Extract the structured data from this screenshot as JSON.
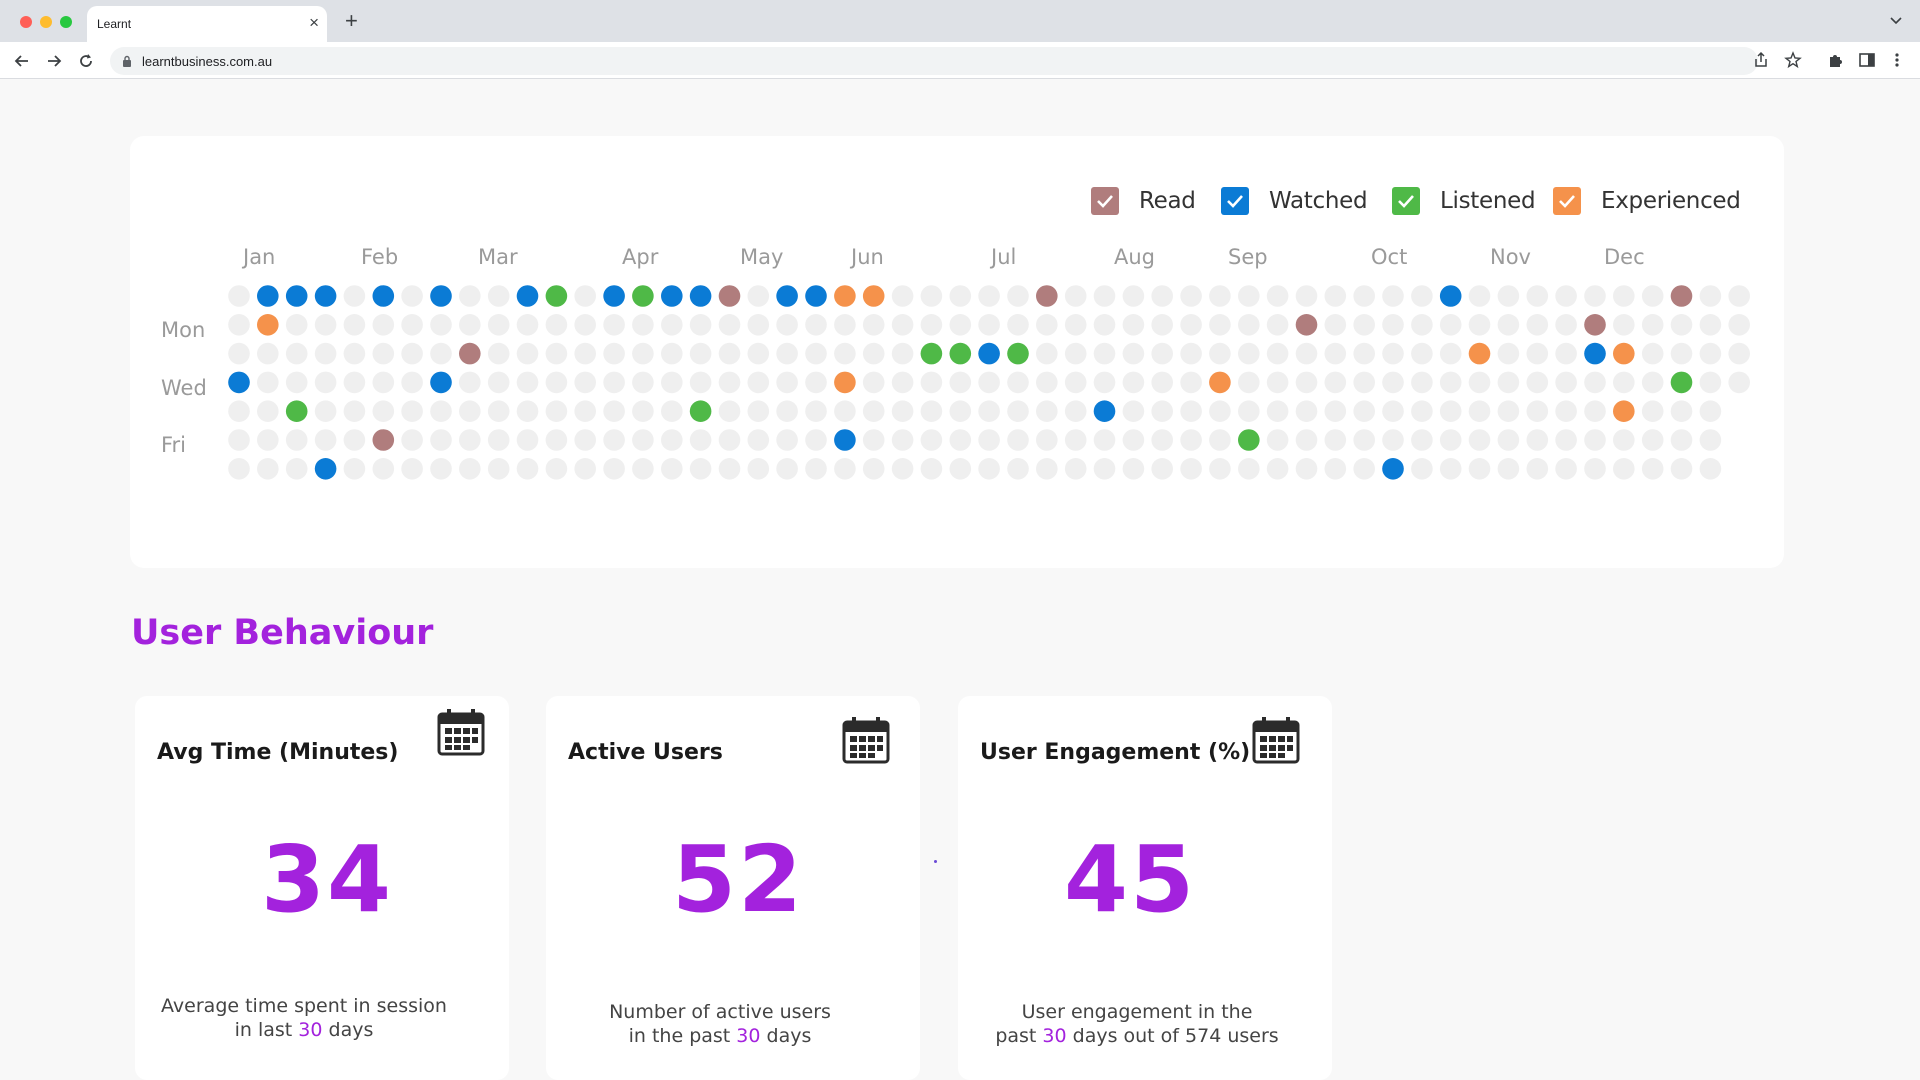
{
  "browser": {
    "tab_title": "Learnt",
    "tab_close": "×",
    "new_tab": "+",
    "url": "learntbusiness.com.au"
  },
  "legend": [
    {
      "label": "Read",
      "color": "#b07d7d"
    },
    {
      "label": "Watched",
      "color": "#0b7bd5"
    },
    {
      "label": "Listened",
      "color": "#4fb947"
    },
    {
      "label": "Experienced",
      "color": "#f5924b"
    }
  ],
  "heatmap": {
    "months": [
      "Jan",
      "Feb",
      "Mar",
      "Apr",
      "May",
      "Jun",
      "Jul",
      "Aug",
      "Sep",
      "Oct",
      "Nov",
      "Dec"
    ],
    "day_labels": [
      "Mon",
      "Wed",
      "Fri"
    ],
    "empty_color": "#efefef",
    "activity": [
      {
        "week": 1,
        "row": 0,
        "type": "Watched"
      },
      {
        "week": 2,
        "row": 0,
        "type": "Watched"
      },
      {
        "week": 3,
        "row": 0,
        "type": "Watched"
      },
      {
        "week": 5,
        "row": 0,
        "type": "Watched"
      },
      {
        "week": 7,
        "row": 0,
        "type": "Watched"
      },
      {
        "week": 10,
        "row": 0,
        "type": "Watched"
      },
      {
        "week": 11,
        "row": 0,
        "type": "Listened"
      },
      {
        "week": 13,
        "row": 0,
        "type": "Watched"
      },
      {
        "week": 14,
        "row": 0,
        "type": "Listened"
      },
      {
        "week": 15,
        "row": 0,
        "type": "Watched"
      },
      {
        "week": 16,
        "row": 0,
        "type": "Watched"
      },
      {
        "week": 17,
        "row": 0,
        "type": "Read"
      },
      {
        "week": 19,
        "row": 0,
        "type": "Watched"
      },
      {
        "week": 20,
        "row": 0,
        "type": "Watched"
      },
      {
        "week": 21,
        "row": 0,
        "type": "Experienced"
      },
      {
        "week": 22,
        "row": 0,
        "type": "Experienced"
      },
      {
        "week": 28,
        "row": 0,
        "type": "Read"
      },
      {
        "week": 42,
        "row": 0,
        "type": "Watched"
      },
      {
        "week": 50,
        "row": 0,
        "type": "Read"
      },
      {
        "week": 1,
        "row": 1,
        "type": "Experienced"
      },
      {
        "week": 37,
        "row": 1,
        "type": "Read"
      },
      {
        "week": 47,
        "row": 1,
        "type": "Read"
      },
      {
        "week": 8,
        "row": 2,
        "type": "Read"
      },
      {
        "week": 24,
        "row": 2,
        "type": "Listened"
      },
      {
        "week": 25,
        "row": 2,
        "type": "Listened"
      },
      {
        "week": 26,
        "row": 2,
        "type": "Watched"
      },
      {
        "week": 27,
        "row": 2,
        "type": "Listened"
      },
      {
        "week": 43,
        "row": 2,
        "type": "Experienced"
      },
      {
        "week": 47,
        "row": 2,
        "type": "Watched"
      },
      {
        "week": 48,
        "row": 2,
        "type": "Experienced"
      },
      {
        "week": 0,
        "row": 3,
        "type": "Watched"
      },
      {
        "week": 7,
        "row": 3,
        "type": "Watched"
      },
      {
        "week": 21,
        "row": 3,
        "type": "Experienced"
      },
      {
        "week": 34,
        "row": 3,
        "type": "Experienced"
      },
      {
        "week": 50,
        "row": 3,
        "type": "Listened"
      },
      {
        "week": 2,
        "row": 4,
        "type": "Listened"
      },
      {
        "week": 16,
        "row": 4,
        "type": "Listened"
      },
      {
        "week": 30,
        "row": 4,
        "type": "Watched"
      },
      {
        "week": 48,
        "row": 4,
        "type": "Experienced"
      },
      {
        "week": 5,
        "row": 5,
        "type": "Read"
      },
      {
        "week": 21,
        "row": 5,
        "type": "Watched"
      },
      {
        "week": 35,
        "row": 5,
        "type": "Listened"
      },
      {
        "week": 3,
        "row": 6,
        "type": "Watched"
      },
      {
        "week": 40,
        "row": 6,
        "type": "Watched"
      }
    ]
  },
  "section": {
    "title": "User Behaviour"
  },
  "cards": [
    {
      "title": "Avg Time (Minutes)",
      "value": "34",
      "desc_1": "Average time spent in session",
      "desc_2a": "in last ",
      "desc_num": "30",
      "desc_2b": " days"
    },
    {
      "title": "Active Users",
      "value": "52",
      "desc_1": "Number of active users",
      "desc_2a": "in the past ",
      "desc_num": "30",
      "desc_2b": " days"
    },
    {
      "title": "User Engagement (%)",
      "value": "45",
      "desc_1": "User engagement in the",
      "desc_2a": "past ",
      "desc_num": "30",
      "desc_2b": " days out of 574 users"
    }
  ]
}
